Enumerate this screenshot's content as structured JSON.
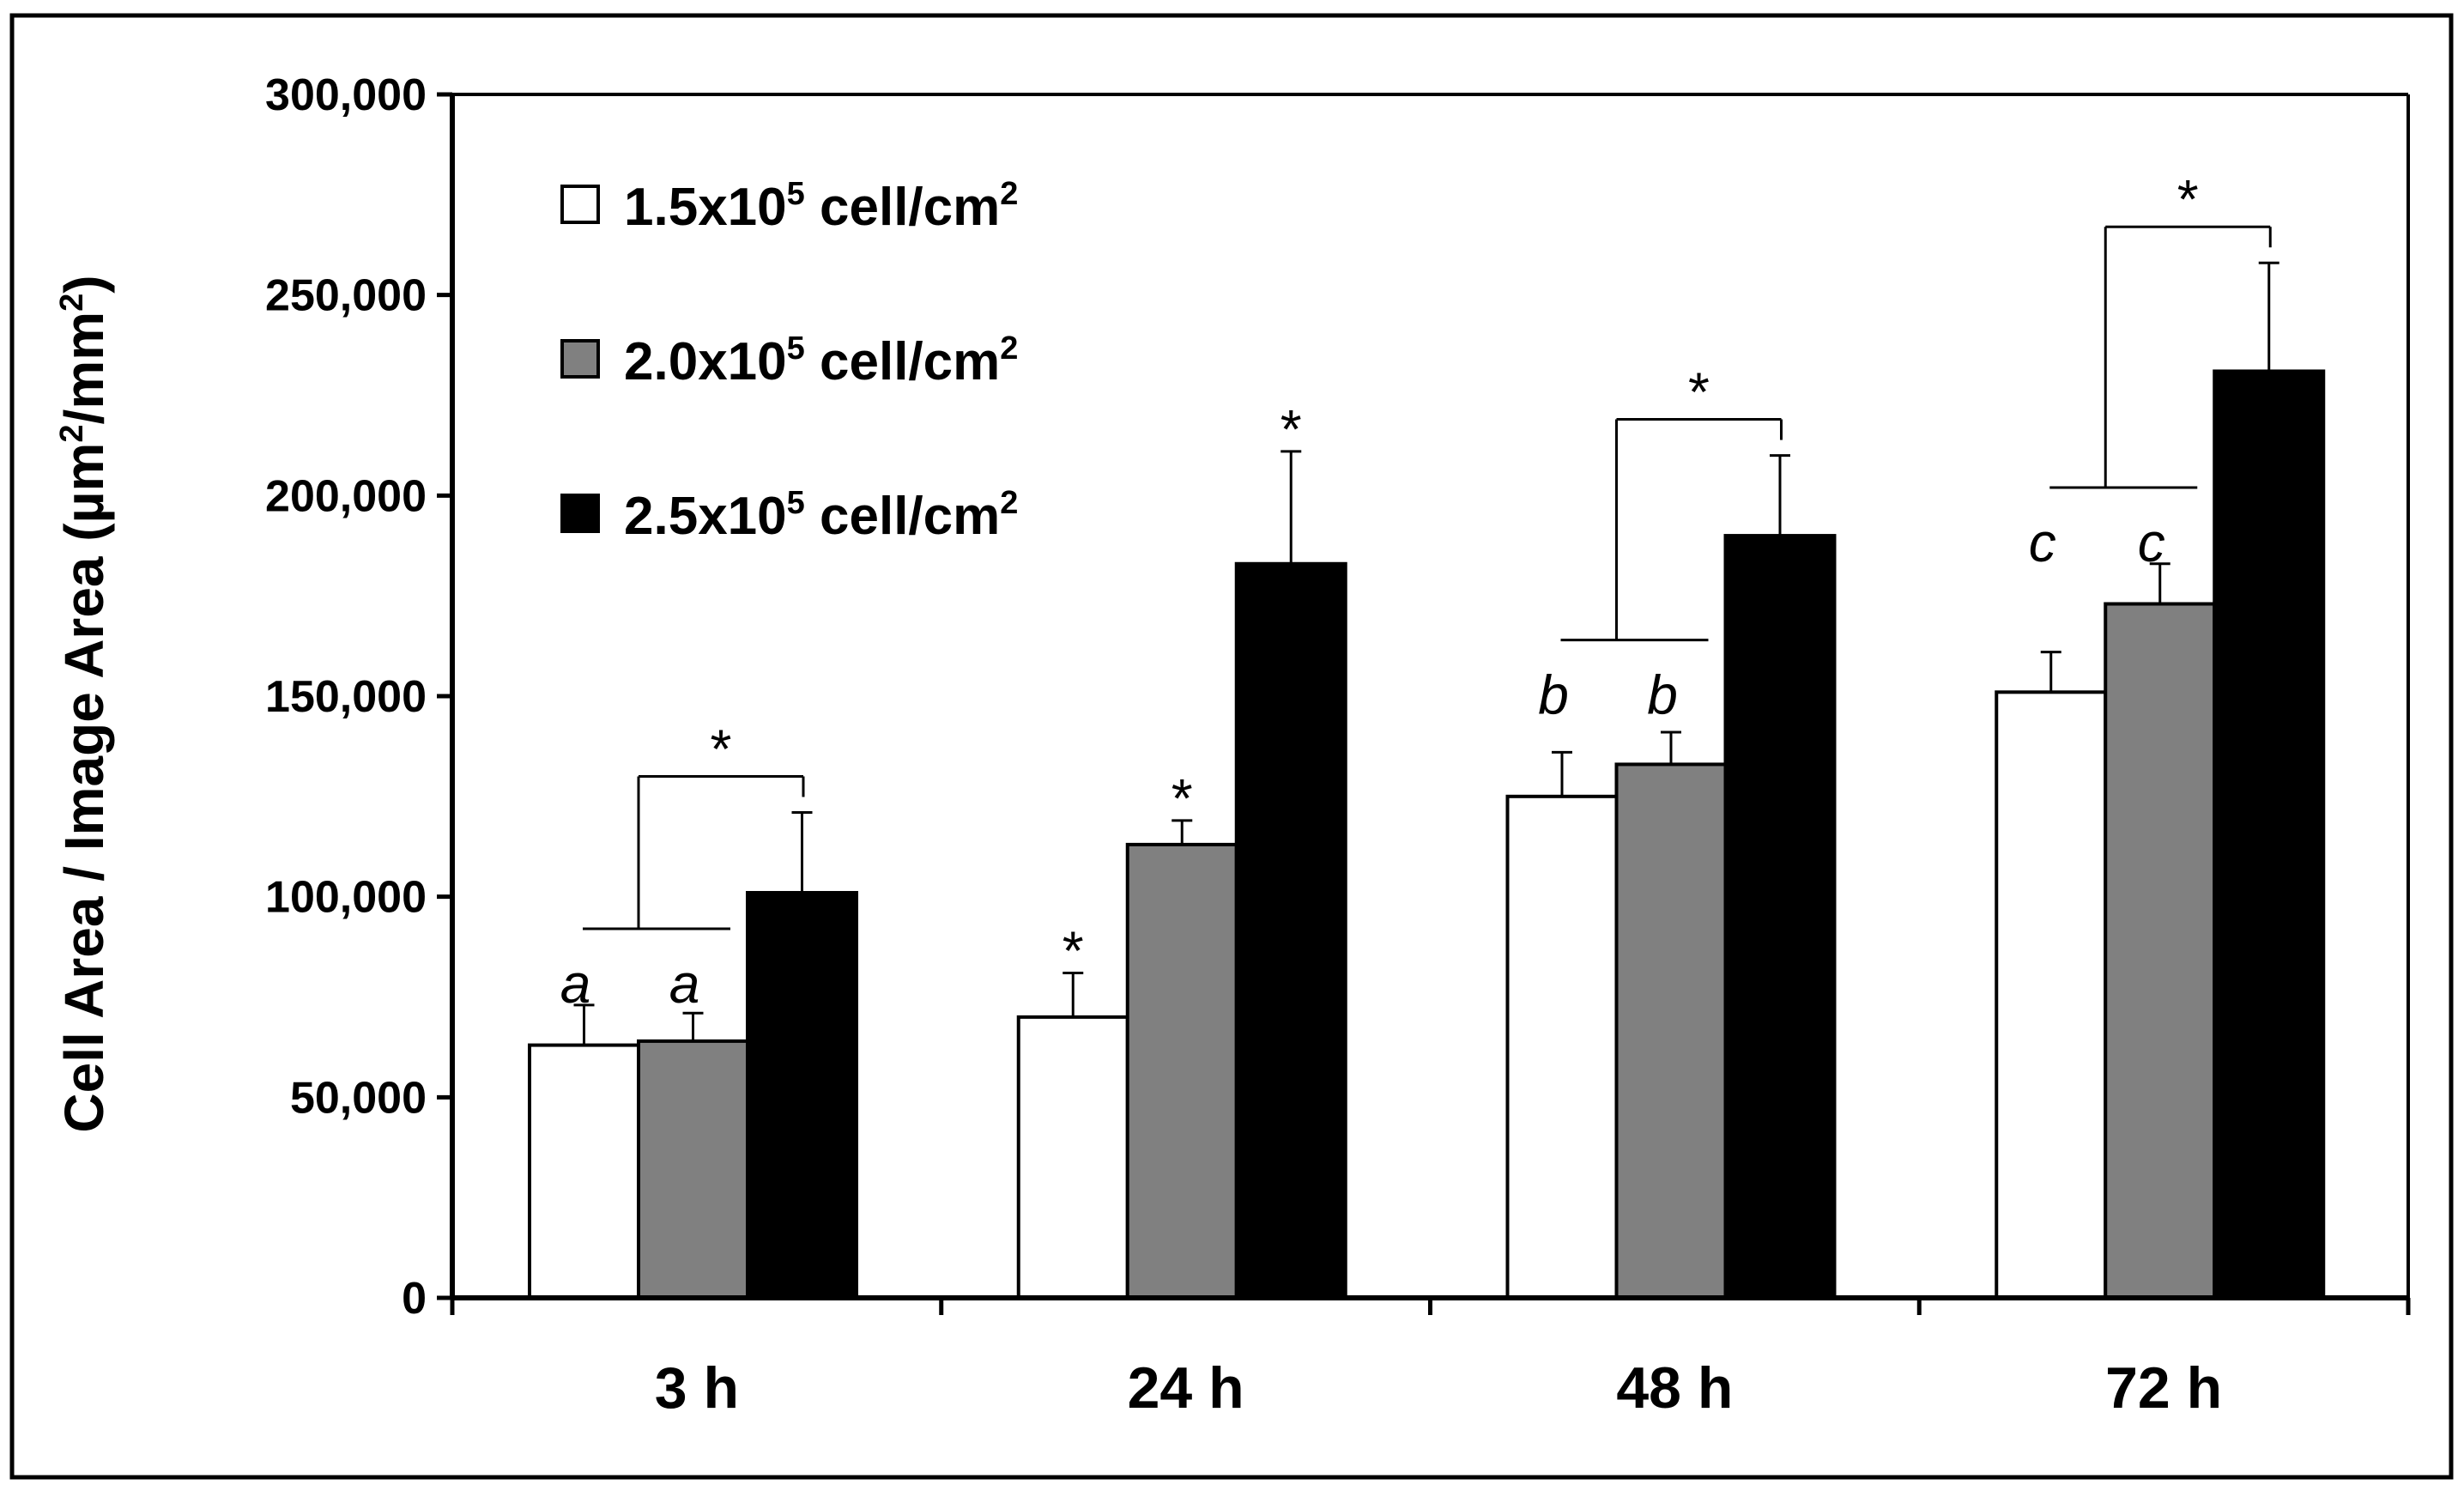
{
  "chart_data": {
    "type": "bar",
    "title": "",
    "xlabel": "",
    "ylabel": "Cell Area / Image Area (µm2/mm2)",
    "ylabel_parts": {
      "pre": "Cell Area / Image Area (",
      "unit1": "µm",
      "sup1": "2",
      "mid": "/mm",
      "sup2": "2",
      "post": ")"
    },
    "ylim": [
      0,
      300000
    ],
    "yticks": [
      0,
      50000,
      100000,
      150000,
      200000,
      250000,
      300000
    ],
    "ytick_labels": [
      "0",
      "50,000",
      "100,000",
      "150,000",
      "200,000",
      "250,000",
      "300,000"
    ],
    "categories": [
      "3 h",
      "24 h",
      "48 h",
      "72 h"
    ],
    "series": [
      {
        "name": "1.5x105 cell/cm2",
        "label_parts": {
          "pre": "1.5x10",
          "sup1": "5",
          "mid": " cell/cm",
          "sup2": "2"
        },
        "color": "#ffffff",
        "values": [
          63000,
          70000,
          125000,
          151000
        ],
        "errors": [
          10000,
          11000,
          11000,
          10000
        ]
      },
      {
        "name": "2.0x105 cell/cm2",
        "label_parts": {
          "pre": "2.0x10",
          "sup1": "5",
          "mid": " cell/cm",
          "sup2": "2"
        },
        "color": "#808080",
        "values": [
          64000,
          113000,
          133000,
          173000
        ],
        "errors": [
          7000,
          6000,
          8000,
          10000
        ]
      },
      {
        "name": "2.5x105 cell/cm2",
        "label_parts": {
          "pre": "2.5x10",
          "sup1": "5",
          "mid": " cell/cm",
          "sup2": "2"
        },
        "color": "#000000",
        "values": [
          101000,
          183000,
          190000,
          231000
        ],
        "errors": [
          20000,
          28000,
          20000,
          27000
        ]
      }
    ],
    "annotations": {
      "star_symbol": "*",
      "bar_stars": [
        {
          "category": 1,
          "series": 0
        },
        {
          "category": 1,
          "series": 1
        },
        {
          "category": 1,
          "series": 2
        }
      ],
      "brackets": [
        {
          "category": 0,
          "y_low": 92000,
          "y_high": 130000,
          "letter": "a"
        },
        {
          "category": 2,
          "y_low": 164000,
          "y_high": 219000,
          "letter": "b"
        },
        {
          "category": 3,
          "y_low": 202000,
          "y_high": 267000,
          "letter": "c"
        }
      ]
    },
    "legend_position": "top-left",
    "grid": false
  }
}
